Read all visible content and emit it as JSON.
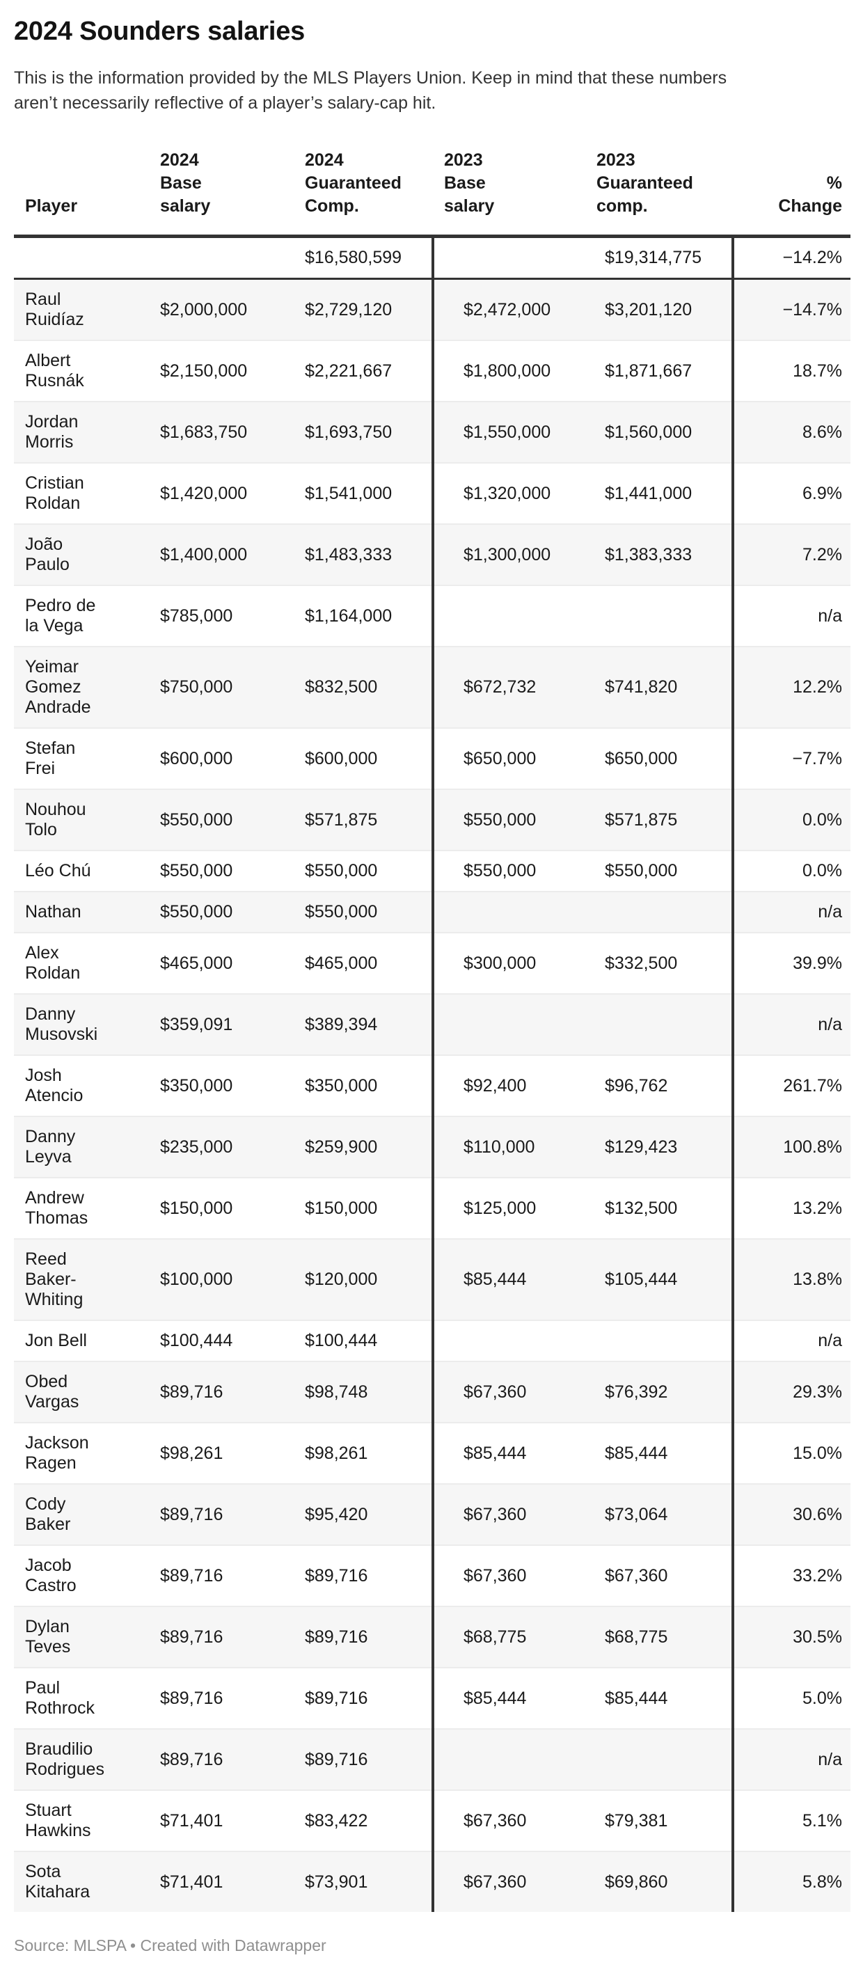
{
  "title": "2024 Sounders salaries",
  "subtitle": "This is the information provided by the MLS Players Union. Keep in mind that these numbers\naren’t necessarily reflective of a player’s salary-cap hit.",
  "footer": "Source: MLSPA • Created with Datawrapper",
  "colors": {
    "ink": "#1a1a1a",
    "dark": "#333333",
    "stripe": "#f6f6f6",
    "rule": "#ececec",
    "muted": "#8f8f8f"
  },
  "chart_data": {
    "type": "table",
    "title": "2024 Sounders salaries",
    "columns": [
      "Player",
      "2024\nBase\nsalary",
      "2024\nGuaranteed\nComp.",
      "2023\nBase\nsalary",
      "2023\nGuaranteed\ncomp.",
      "%\nChange"
    ],
    "totals": {
      "guaranteed_2024": "$16,580,599",
      "guaranteed_2023": "$19,314,775",
      "pct_change": "−14.2%"
    },
    "rows": [
      {
        "player": "Raul Ruidíaz",
        "base_2024": "$2,000,000",
        "guaranteed_2024": "$2,729,120",
        "base_2023": "$2,472,000",
        "guaranteed_2023": "$3,201,120",
        "pct_change": "−14.7%"
      },
      {
        "player": "Albert Rusnák",
        "base_2024": "$2,150,000",
        "guaranteed_2024": "$2,221,667",
        "base_2023": "$1,800,000",
        "guaranteed_2023": "$1,871,667",
        "pct_change": "18.7%"
      },
      {
        "player": "Jordan Morris",
        "base_2024": "$1,683,750",
        "guaranteed_2024": "$1,693,750",
        "base_2023": "$1,550,000",
        "guaranteed_2023": "$1,560,000",
        "pct_change": "8.6%"
      },
      {
        "player": "Cristian Roldan",
        "base_2024": "$1,420,000",
        "guaranteed_2024": "$1,541,000",
        "base_2023": "$1,320,000",
        "guaranteed_2023": "$1,441,000",
        "pct_change": "6.9%"
      },
      {
        "player": "João Paulo",
        "base_2024": "$1,400,000",
        "guaranteed_2024": "$1,483,333",
        "base_2023": "$1,300,000",
        "guaranteed_2023": "$1,383,333",
        "pct_change": "7.2%"
      },
      {
        "player": "Pedro de la Vega",
        "base_2024": "$785,000",
        "guaranteed_2024": "$1,164,000",
        "base_2023": "",
        "guaranteed_2023": "",
        "pct_change": "n/a"
      },
      {
        "player": "Yeimar Gomez Andrade",
        "base_2024": "$750,000",
        "guaranteed_2024": "$832,500",
        "base_2023": "$672,732",
        "guaranteed_2023": "$741,820",
        "pct_change": "12.2%"
      },
      {
        "player": "Stefan Frei",
        "base_2024": "$600,000",
        "guaranteed_2024": "$600,000",
        "base_2023": "$650,000",
        "guaranteed_2023": "$650,000",
        "pct_change": "−7.7%"
      },
      {
        "player": "Nouhou Tolo",
        "base_2024": "$550,000",
        "guaranteed_2024": "$571,875",
        "base_2023": "$550,000",
        "guaranteed_2023": "$571,875",
        "pct_change": "0.0%"
      },
      {
        "player": "Léo Chú",
        "base_2024": "$550,000",
        "guaranteed_2024": "$550,000",
        "base_2023": "$550,000",
        "guaranteed_2023": "$550,000",
        "pct_change": "0.0%"
      },
      {
        "player": "Nathan",
        "base_2024": "$550,000",
        "guaranteed_2024": "$550,000",
        "base_2023": "",
        "guaranteed_2023": "",
        "pct_change": "n/a"
      },
      {
        "player": "Alex Roldan",
        "base_2024": "$465,000",
        "guaranteed_2024": "$465,000",
        "base_2023": "$300,000",
        "guaranteed_2023": "$332,500",
        "pct_change": "39.9%"
      },
      {
        "player": "Danny Musovski",
        "base_2024": "$359,091",
        "guaranteed_2024": "$389,394",
        "base_2023": "",
        "guaranteed_2023": "",
        "pct_change": "n/a"
      },
      {
        "player": "Josh Atencio",
        "base_2024": "$350,000",
        "guaranteed_2024": "$350,000",
        "base_2023": "$92,400",
        "guaranteed_2023": "$96,762",
        "pct_change": "261.7%"
      },
      {
        "player": "Danny Leyva",
        "base_2024": "$235,000",
        "guaranteed_2024": "$259,900",
        "base_2023": "$110,000",
        "guaranteed_2023": "$129,423",
        "pct_change": "100.8%"
      },
      {
        "player": "Andrew Thomas",
        "base_2024": "$150,000",
        "guaranteed_2024": "$150,000",
        "base_2023": "$125,000",
        "guaranteed_2023": "$132,500",
        "pct_change": "13.2%"
      },
      {
        "player": "Reed Baker-Whiting",
        "base_2024": "$100,000",
        "guaranteed_2024": "$120,000",
        "base_2023": "$85,444",
        "guaranteed_2023": "$105,444",
        "pct_change": "13.8%"
      },
      {
        "player": "Jon Bell",
        "base_2024": "$100,444",
        "guaranteed_2024": "$100,444",
        "base_2023": "",
        "guaranteed_2023": "",
        "pct_change": "n/a"
      },
      {
        "player": "Obed Vargas",
        "base_2024": "$89,716",
        "guaranteed_2024": "$98,748",
        "base_2023": "$67,360",
        "guaranteed_2023": "$76,392",
        "pct_change": "29.3%"
      },
      {
        "player": "Jackson Ragen",
        "base_2024": "$98,261",
        "guaranteed_2024": "$98,261",
        "base_2023": "$85,444",
        "guaranteed_2023": "$85,444",
        "pct_change": "15.0%"
      },
      {
        "player": "Cody Baker",
        "base_2024": "$89,716",
        "guaranteed_2024": "$95,420",
        "base_2023": "$67,360",
        "guaranteed_2023": "$73,064",
        "pct_change": "30.6%"
      },
      {
        "player": "Jacob Castro",
        "base_2024": "$89,716",
        "guaranteed_2024": "$89,716",
        "base_2023": "$67,360",
        "guaranteed_2023": "$67,360",
        "pct_change": "33.2%"
      },
      {
        "player": "Dylan Teves",
        "base_2024": "$89,716",
        "guaranteed_2024": "$89,716",
        "base_2023": "$68,775",
        "guaranteed_2023": "$68,775",
        "pct_change": "30.5%"
      },
      {
        "player": "Paul Rothrock",
        "base_2024": "$89,716",
        "guaranteed_2024": "$89,716",
        "base_2023": "$85,444",
        "guaranteed_2023": "$85,444",
        "pct_change": "5.0%"
      },
      {
        "player": "Braudilio Rodrigues",
        "base_2024": "$89,716",
        "guaranteed_2024": "$89,716",
        "base_2023": "",
        "guaranteed_2023": "",
        "pct_change": "n/a"
      },
      {
        "player": "Stuart Hawkins",
        "base_2024": "$71,401",
        "guaranteed_2024": "$83,422",
        "base_2023": "$67,360",
        "guaranteed_2023": "$79,381",
        "pct_change": "5.1%"
      },
      {
        "player": "Sota Kitahara",
        "base_2024": "$71,401",
        "guaranteed_2024": "$73,901",
        "base_2023": "$67,360",
        "guaranteed_2023": "$69,860",
        "pct_change": "5.8%"
      }
    ]
  }
}
